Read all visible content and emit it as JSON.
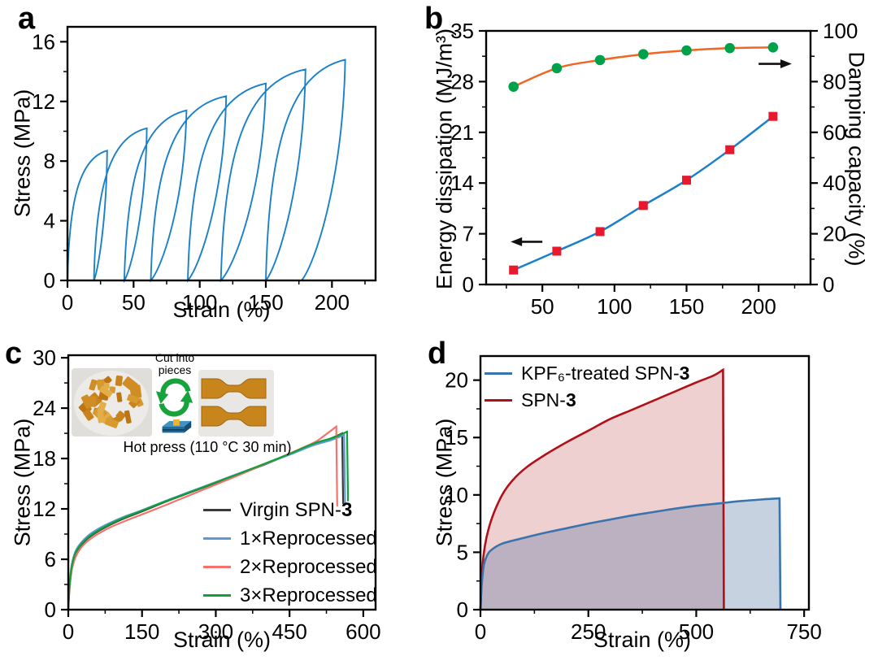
{
  "figure_title": "",
  "chart_data": [
    {
      "panel": "a",
      "type": "line",
      "subtype": "cyclic_loading_unloading",
      "xlabel": "Strain (%)",
      "ylabel": "Stress (MPa)",
      "xlim": [
        0,
        233
      ],
      "ylim": [
        0,
        17
      ],
      "xticks": [
        0,
        50,
        100,
        150,
        200
      ],
      "x_minor_step": 25,
      "yticks": [
        0,
        4,
        8,
        12,
        16
      ],
      "y_minor_step": 2,
      "line_color": "#1a80c9",
      "cycles": [
        {
          "peak_strain": 30,
          "peak_stress": 8.7,
          "residual_strain": 20
        },
        {
          "peak_strain": 60,
          "peak_stress": 10.2,
          "residual_strain": 43
        },
        {
          "peak_strain": 90,
          "peak_stress": 11.4,
          "residual_strain": 63
        },
        {
          "peak_strain": 120,
          "peak_stress": 12.35,
          "residual_strain": 91
        },
        {
          "peak_strain": 150,
          "peak_stress": 13.2,
          "residual_strain": 116
        },
        {
          "peak_strain": 180,
          "peak_stress": 14.15,
          "residual_strain": 150
        },
        {
          "peak_strain": 210,
          "peak_stress": 14.8,
          "residual_strain": 177
        }
      ]
    },
    {
      "panel": "b",
      "type": "scatter",
      "ylabel_left": "Energy dissipation (MJ/m³)",
      "ylabel_right": "Damping capacity (%)",
      "xlim": [
        11,
        236
      ],
      "xticks": [
        50,
        100,
        150,
        200
      ],
      "x_minor_step": 25,
      "ylim_left": [
        0,
        35
      ],
      "yticks_left": [
        0,
        7,
        14,
        21,
        28,
        35
      ],
      "y_minor_left": 3.5,
      "ylim_right": [
        0,
        100
      ],
      "yticks_right": [
        0,
        20,
        40,
        60,
        80,
        100
      ],
      "y_minor_right": 10,
      "x": [
        30,
        60,
        90,
        120,
        150,
        180,
        210
      ],
      "series": [
        {
          "name": "Energy dissipation",
          "axis": "left",
          "marker": "square",
          "marker_color": "#e8192c",
          "line_color": "#1a80c9",
          "values": [
            2.0,
            4.6,
            7.3,
            10.9,
            14.4,
            18.6,
            23.2
          ]
        },
        {
          "name": "Damping capacity",
          "axis": "right",
          "marker": "circle",
          "marker_color": "#00a14b",
          "line_color": "#f26522",
          "values": [
            78,
            85.3,
            88.5,
            90.8,
            92.3,
            93.2,
            93.5
          ]
        }
      ],
      "arrows": [
        {
          "axis": "left",
          "y": 5.9,
          "x_from": 50,
          "x_to": 28,
          "head": "left"
        },
        {
          "axis": "right",
          "y": 87,
          "x_from": 200,
          "x_to": 223,
          "head": "right"
        }
      ]
    },
    {
      "panel": "c",
      "type": "line",
      "xlabel": "Strain (%)",
      "ylabel": "Stress (MPa)",
      "xlim": [
        0,
        625
      ],
      "ylim": [
        0,
        30.3
      ],
      "xticks": [
        0,
        150,
        300,
        450,
        600
      ],
      "x_minor_step": 75,
      "yticks": [
        0,
        6,
        12,
        18,
        24,
        30
      ],
      "y_minor_step": 3,
      "series": [
        {
          "label_pre": "Virgin SPN-",
          "label_bold": "3",
          "color": "#3b3b3b",
          "points": [
            [
              0,
              0
            ],
            [
              2,
              2.2
            ],
            [
              5,
              4.2
            ],
            [
              9,
              5.6
            ],
            [
              15,
              6.7
            ],
            [
              25,
              7.6
            ],
            [
              40,
              8.5
            ],
            [
              60,
              9.3
            ],
            [
              85,
              10.1
            ],
            [
              115,
              10.9
            ],
            [
              150,
              11.7
            ],
            [
              200,
              12.9
            ],
            [
              250,
              14.0
            ],
            [
              300,
              15.1
            ],
            [
              350,
              16.2
            ],
            [
              400,
              17.3
            ],
            [
              450,
              18.5
            ],
            [
              500,
              19.7
            ],
            [
              530,
              20.3
            ],
            [
              557,
              21.0
            ]
          ],
          "drop_to": [
            559,
            12.6
          ]
        },
        {
          "label_pre": "1×Reprocessed",
          "label_bold": "",
          "color": "#5b9bd5",
          "points": [
            [
              0,
              0
            ],
            [
              2,
              2.5
            ],
            [
              5,
              4.5
            ],
            [
              9,
              5.9
            ],
            [
              15,
              7.0
            ],
            [
              25,
              7.9
            ],
            [
              40,
              8.8
            ],
            [
              60,
              9.6
            ],
            [
              85,
              10.35
            ],
            [
              115,
              11.1
            ],
            [
              150,
              11.85
            ],
            [
              200,
              13.0
            ],
            [
              250,
              14.1
            ],
            [
              300,
              15.2
            ],
            [
              350,
              16.3
            ],
            [
              400,
              17.35
            ],
            [
              450,
              18.45
            ],
            [
              500,
              19.6
            ],
            [
              535,
              20.2
            ],
            [
              561,
              20.8
            ]
          ],
          "drop_to": [
            563,
            12.4
          ]
        },
        {
          "label_pre": "2×Reprocessed",
          "label_bold": "",
          "color": "#f4736d",
          "points": [
            [
              0,
              0
            ],
            [
              2,
              2.0
            ],
            [
              5,
              3.8
            ],
            [
              9,
              5.2
            ],
            [
              15,
              6.3
            ],
            [
              25,
              7.3
            ],
            [
              40,
              8.2
            ],
            [
              60,
              9.0
            ],
            [
              85,
              9.8
            ],
            [
              115,
              10.55
            ],
            [
              150,
              11.35
            ],
            [
              200,
              12.5
            ],
            [
              250,
              13.7
            ],
            [
              300,
              14.9
            ],
            [
              350,
              16.1
            ],
            [
              400,
              17.35
            ],
            [
              450,
              18.6
            ],
            [
              500,
              19.9
            ],
            [
              520,
              20.7
            ],
            [
              545,
              21.8
            ]
          ],
          "drop_to": [
            547,
            12.3
          ]
        },
        {
          "label_pre": "3×Reprocessed",
          "label_bold": "",
          "color": "#13a03a",
          "points": [
            [
              0,
              0
            ],
            [
              2,
              2.3
            ],
            [
              5,
              4.3
            ],
            [
              9,
              5.7
            ],
            [
              15,
              6.8
            ],
            [
              25,
              7.7
            ],
            [
              40,
              8.6
            ],
            [
              60,
              9.4
            ],
            [
              85,
              10.2
            ],
            [
              115,
              11.0
            ],
            [
              150,
              11.8
            ],
            [
              200,
              12.95
            ],
            [
              250,
              14.05
            ],
            [
              300,
              15.15
            ],
            [
              350,
              16.25
            ],
            [
              400,
              17.4
            ],
            [
              450,
              18.55
            ],
            [
              500,
              19.8
            ],
            [
              540,
              20.5
            ],
            [
              567,
              21.2
            ]
          ],
          "drop_to": [
            569,
            12.9
          ]
        }
      ],
      "inset": {
        "cut_line1": "Cut into",
        "cut_line2": "pieces",
        "caption": "Hot press (110 °C 30 min)",
        "arrow_color": "#18a23c",
        "specimen_color": "#c8851c",
        "piece_colors": [
          "#d79a2e",
          "#c9831c",
          "#e3ae4a",
          "#bd7514",
          "#d18d25"
        ]
      }
    },
    {
      "panel": "d",
      "type": "area",
      "xlabel": "Strain (%)",
      "ylabel": "Stress (MPa)",
      "xlim": [
        0,
        761
      ],
      "ylim": [
        0,
        22.1
      ],
      "xticks": [
        0,
        250,
        500,
        750
      ],
      "x_minor_step": 125,
      "yticks": [
        0,
        5,
        10,
        15,
        20
      ],
      "y_minor_step": 2.5,
      "series": [
        {
          "label_pre": "KPF₆-treated SPN-",
          "label_bold": "3",
          "line_color": "#3a74ac",
          "fill_color": "rgba(70,105,155,0.30)",
          "points": [
            [
              0,
              0
            ],
            [
              3,
              2.2
            ],
            [
              8,
              3.9
            ],
            [
              15,
              4.7
            ],
            [
              25,
              5.2
            ],
            [
              50,
              5.75
            ],
            [
              100,
              6.25
            ],
            [
              150,
              6.7
            ],
            [
              200,
              7.1
            ],
            [
              250,
              7.5
            ],
            [
              300,
              7.85
            ],
            [
              350,
              8.2
            ],
            [
              400,
              8.5
            ],
            [
              450,
              8.8
            ],
            [
              500,
              9.05
            ],
            [
              550,
              9.25
            ],
            [
              600,
              9.45
            ],
            [
              650,
              9.6
            ],
            [
              693,
              9.7
            ]
          ],
          "drop_to": [
            695,
            0
          ]
        },
        {
          "label_pre": "SPN-",
          "label_bold": "3",
          "line_color": "#b01118",
          "fill_color": "rgba(176,19,24,0.20)",
          "points": [
            [
              0,
              0
            ],
            [
              4,
              3.5
            ],
            [
              10,
              5.5
            ],
            [
              20,
              7.2
            ],
            [
              35,
              8.8
            ],
            [
              55,
              10.3
            ],
            [
              80,
              11.5
            ],
            [
              110,
              12.5
            ],
            [
              150,
              13.5
            ],
            [
              200,
              14.6
            ],
            [
              250,
              15.6
            ],
            [
              300,
              16.6
            ],
            [
              350,
              17.4
            ],
            [
              400,
              18.2
            ],
            [
              450,
              19.0
            ],
            [
              500,
              19.8
            ],
            [
              540,
              20.4
            ],
            [
              562,
              20.9
            ]
          ],
          "drop_to": [
            564,
            0
          ]
        }
      ]
    }
  ]
}
